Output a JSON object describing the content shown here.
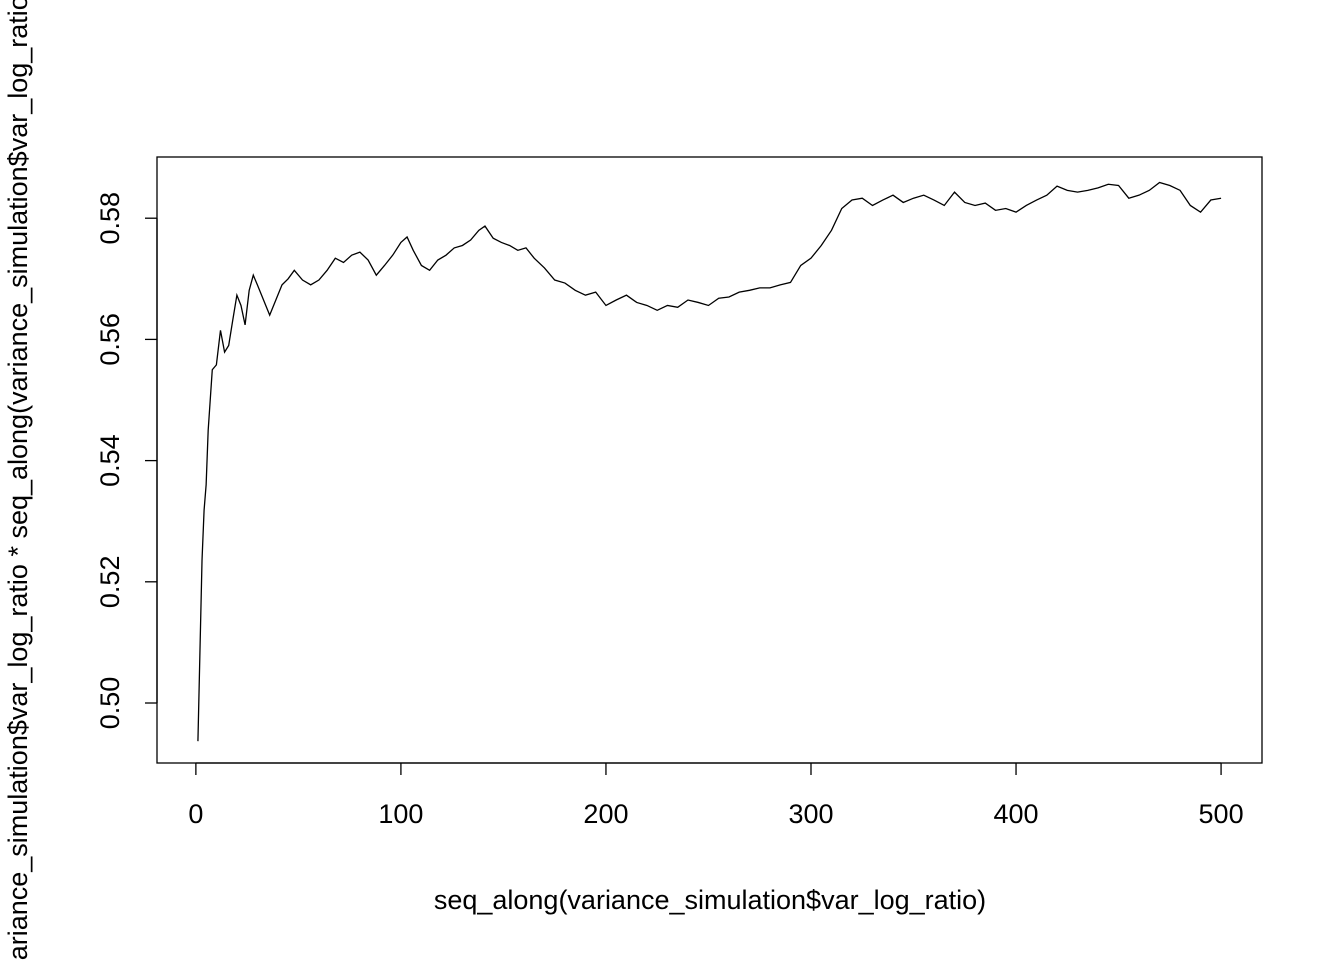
{
  "chart_data": {
    "type": "line",
    "xlabel": "seq_along(variance_simulation$var_log_ratio)",
    "ylabel": "variance_simulation$var_log_ratio * seq_along(variance_simulation$var_log_ratio)",
    "x": [
      1,
      2,
      3,
      4,
      5,
      6,
      7,
      8,
      10,
      12,
      14,
      16,
      18,
      20,
      22,
      24,
      26,
      28,
      30,
      33,
      36,
      39,
      42,
      45,
      48,
      52,
      56,
      60,
      64,
      68,
      72,
      76,
      80,
      84,
      88,
      92,
      96,
      100,
      103,
      106,
      110,
      114,
      118,
      122,
      126,
      130,
      134,
      138,
      141,
      145,
      149,
      153,
      157,
      161,
      165,
      170,
      175,
      180,
      185,
      190,
      195,
      200,
      205,
      210,
      215,
      220,
      225,
      230,
      235,
      240,
      245,
      250,
      255,
      260,
      265,
      270,
      275,
      280,
      285,
      290,
      295,
      300,
      305,
      310,
      315,
      320,
      325,
      330,
      335,
      340,
      345,
      350,
      355,
      360,
      365,
      370,
      375,
      380,
      385,
      390,
      395,
      400,
      405,
      410,
      415,
      420,
      425,
      430,
      435,
      440,
      445,
      450,
      455,
      460,
      465,
      470,
      475,
      480,
      485,
      490,
      495,
      500
    ],
    "series": [
      {
        "color": "#000000",
        "values": [
          0.4937,
          0.5087,
          0.5236,
          0.5318,
          0.536,
          0.545,
          0.55,
          0.555,
          0.5558,
          0.5615,
          0.5579,
          0.559,
          0.5632,
          0.5673,
          0.5656,
          0.5624,
          0.5681,
          0.5706,
          0.569,
          0.5665,
          0.564,
          0.5665,
          0.569,
          0.57,
          0.5714,
          0.5698,
          0.569,
          0.5698,
          0.5714,
          0.5734,
          0.5727,
          0.5739,
          0.5744,
          0.5731,
          0.5706,
          0.5722,
          0.5739,
          0.576,
          0.5769,
          0.5747,
          0.5722,
          0.5714,
          0.5731,
          0.5739,
          0.5751,
          0.5755,
          0.5764,
          0.578,
          0.5787,
          0.5767,
          0.576,
          0.5755,
          0.5747,
          0.5751,
          0.5734,
          0.5718,
          0.5698,
          0.5693,
          0.5681,
          0.5673,
          0.5678,
          0.5656,
          0.5665,
          0.5673,
          0.5661,
          0.5656,
          0.5648,
          0.5656,
          0.5653,
          0.5665,
          0.5661,
          0.5656,
          0.5668,
          0.567,
          0.5678,
          0.5681,
          0.5685,
          0.5685,
          0.569,
          0.5694,
          0.5722,
          0.5734,
          0.5755,
          0.578,
          0.5816,
          0.583,
          0.5833,
          0.5821,
          0.583,
          0.5838,
          0.5826,
          0.5833,
          0.5838,
          0.583,
          0.5821,
          0.5843,
          0.5826,
          0.5821,
          0.5825,
          0.5813,
          0.5816,
          0.581,
          0.5821,
          0.583,
          0.5838,
          0.5853,
          0.5846,
          0.5843,
          0.5846,
          0.585,
          0.5856,
          0.5854,
          0.5833,
          0.5838,
          0.5846,
          0.5859,
          0.5854,
          0.5846,
          0.5821,
          0.581,
          0.583,
          0.5833
        ]
      }
    ],
    "xlim": [
      -18.96,
      519.96
    ],
    "ylim": [
      0.4901,
      0.5901
    ],
    "xticks": [
      0,
      100,
      200,
      300,
      400,
      500
    ],
    "yticks": [
      {
        "value": 0.5,
        "label": "0.50"
      },
      {
        "value": 0.52,
        "label": "0.52"
      },
      {
        "value": 0.54,
        "label": "0.54"
      },
      {
        "value": 0.56,
        "label": "0.56"
      },
      {
        "value": 0.58,
        "label": "0.58"
      }
    ]
  }
}
